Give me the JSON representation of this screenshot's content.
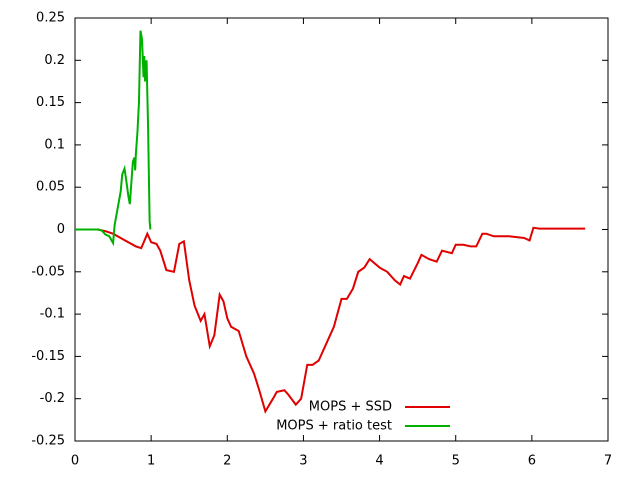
{
  "chart_data": {
    "type": "line",
    "xlim": [
      0,
      7
    ],
    "xticks": [
      0,
      1,
      2,
      3,
      4,
      5,
      6,
      7
    ],
    "ylim": [
      -0.25,
      0.25
    ],
    "yticks": [
      -0.25,
      -0.2,
      -0.15,
      -0.1,
      -0.05,
      0,
      0.05,
      0.1,
      0.15,
      0.2,
      0.25
    ],
    "grid": false,
    "legend": "lower right",
    "series": [
      {
        "name": "MOPS + SSD",
        "color": "#e00000",
        "x": [
          0,
          0.3,
          0.4,
          0.5,
          0.6,
          0.7,
          0.8,
          0.87,
          0.95,
          1.0,
          1.07,
          1.12,
          1.2,
          1.3,
          1.37,
          1.43,
          1.5,
          1.57,
          1.65,
          1.7,
          1.77,
          1.83,
          1.9,
          1.95,
          2.0,
          2.05,
          2.15,
          2.25,
          2.35,
          2.42,
          2.5,
          2.6,
          2.65,
          2.75,
          2.8,
          2.9,
          2.97,
          3.05,
          3.12,
          3.2,
          3.3,
          3.4,
          3.5,
          3.57,
          3.65,
          3.72,
          3.8,
          3.87,
          4.0,
          4.1,
          4.2,
          4.27,
          4.32,
          4.4,
          4.5,
          4.55,
          4.65,
          4.75,
          4.82,
          4.95,
          5.0,
          5.1,
          5.2,
          5.27,
          5.35,
          5.4,
          5.5,
          5.7,
          5.9,
          5.97,
          6.02,
          6.1,
          6.5,
          6.7
        ],
        "values": [
          0,
          0,
          -0.002,
          -0.005,
          -0.01,
          -0.015,
          -0.02,
          -0.022,
          -0.005,
          -0.015,
          -0.017,
          -0.025,
          -0.048,
          -0.05,
          -0.017,
          -0.014,
          -0.06,
          -0.09,
          -0.108,
          -0.1,
          -0.138,
          -0.125,
          -0.077,
          -0.085,
          -0.105,
          -0.115,
          -0.12,
          -0.15,
          -0.17,
          -0.19,
          -0.215,
          -0.2,
          -0.192,
          -0.19,
          -0.195,
          -0.207,
          -0.2,
          -0.16,
          -0.16,
          -0.155,
          -0.135,
          -0.115,
          -0.082,
          -0.082,
          -0.07,
          -0.05,
          -0.045,
          -0.035,
          -0.045,
          -0.05,
          -0.06,
          -0.065,
          -0.055,
          -0.058,
          -0.04,
          -0.03,
          -0.035,
          -0.038,
          -0.025,
          -0.028,
          -0.018,
          -0.018,
          -0.02,
          -0.02,
          -0.005,
          -0.005,
          -0.008,
          -0.008,
          -0.01,
          -0.013,
          0.002,
          0.001,
          0.001,
          0.001
        ]
      },
      {
        "name": "MOPS + ratio test",
        "color": "#00b000",
        "x": [
          0,
          0.3,
          0.35,
          0.4,
          0.45,
          0.5,
          0.52,
          0.55,
          0.6,
          0.62,
          0.65,
          0.67,
          0.7,
          0.72,
          0.74,
          0.76,
          0.78,
          0.79,
          0.8,
          0.82,
          0.84,
          0.86,
          0.88,
          0.9,
          0.91,
          0.92,
          0.94,
          0.96,
          0.98,
          0.99
        ],
        "values": [
          0,
          0,
          -0.001,
          -0.006,
          -0.008,
          -0.016,
          0.005,
          0.02,
          0.045,
          0.065,
          0.072,
          0.06,
          0.04,
          0.03,
          0.055,
          0.08,
          0.085,
          0.07,
          0.09,
          0.115,
          0.15,
          0.235,
          0.225,
          0.18,
          0.205,
          0.175,
          0.2,
          0.12,
          0.01,
          0
        ]
      }
    ]
  }
}
